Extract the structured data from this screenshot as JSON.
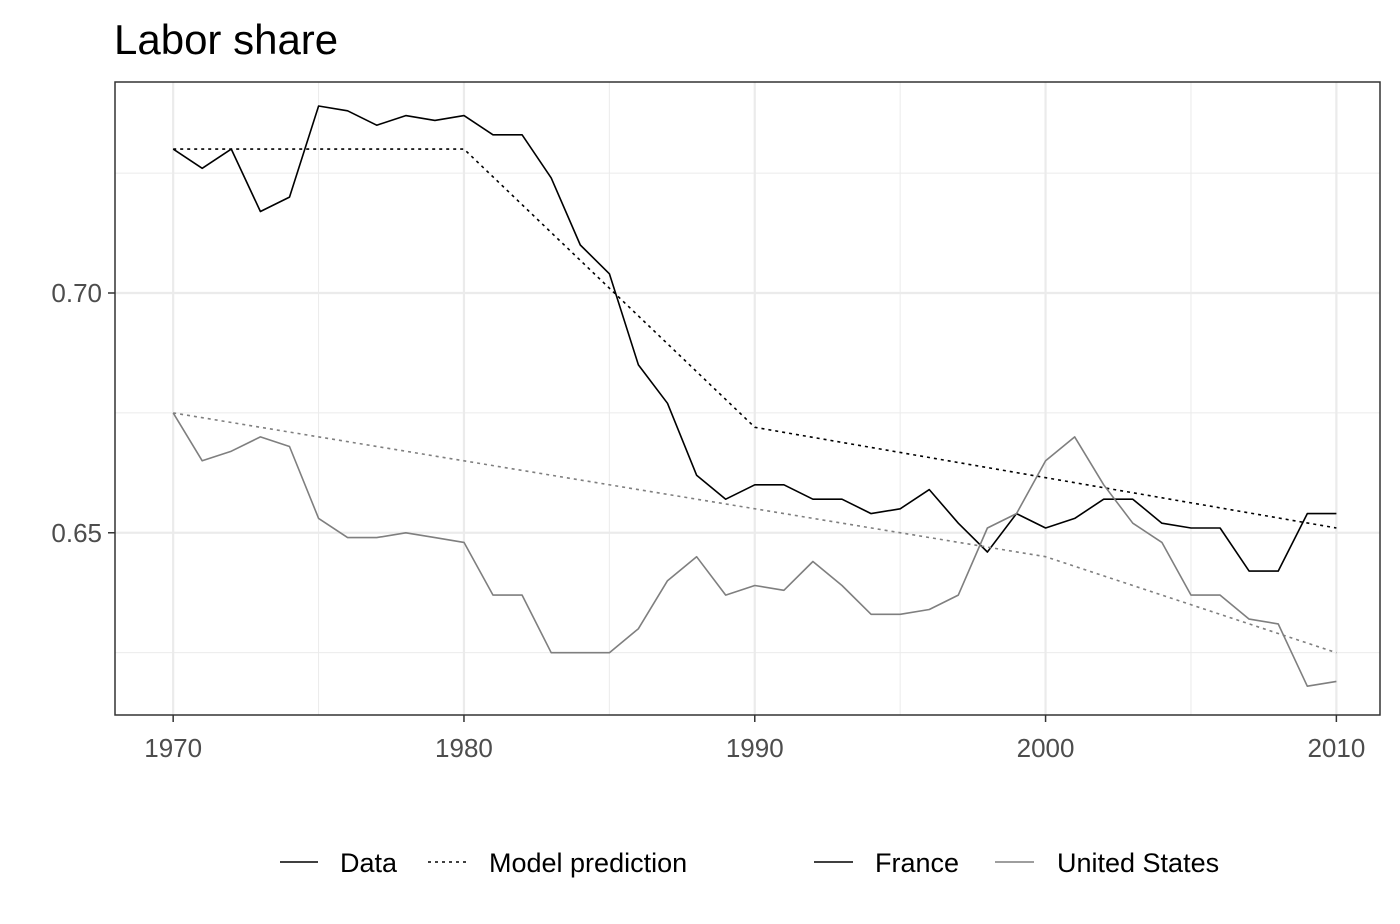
{
  "chart_data": {
    "type": "line",
    "title": "Labor share",
    "xlabel": "",
    "ylabel": "",
    "xlim": [
      1968,
      2011.5
    ],
    "ylim": [
      0.612,
      0.744
    ],
    "x_ticks": [
      "1970",
      "1980",
      "1990",
      "2000",
      "2010"
    ],
    "x_tick_values": [
      1970,
      1980,
      1990,
      2000,
      2010
    ],
    "y_ticks": [
      "0.65",
      "0.70"
    ],
    "y_tick_values": [
      0.65,
      0.7
    ],
    "y_minor_values": [
      0.625,
      0.675,
      0.725
    ],
    "x_minor_values": [
      1975,
      1985,
      1995,
      2005
    ],
    "grid": true,
    "legend_position": "bottom",
    "legend": {
      "linetype": [
        {
          "label": "Data",
          "dash": "solid"
        },
        {
          "label": "Model prediction",
          "dash": "dotted"
        }
      ],
      "country": [
        {
          "label": "France",
          "color": "#000000"
        },
        {
          "label": "United States",
          "color": "#7f7f7f"
        }
      ]
    },
    "colors": {
      "France": "#000000",
      "United States": "#7f7f7f"
    },
    "series": [
      {
        "name": "France",
        "kind": "Data",
        "color": "#000000",
        "dash": "solid",
        "x": [
          1970,
          1971,
          1972,
          1973,
          1974,
          1975,
          1976,
          1977,
          1978,
          1979,
          1980,
          1981,
          1982,
          1983,
          1984,
          1985,
          1986,
          1987,
          1988,
          1989,
          1990,
          1991,
          1992,
          1993,
          1994,
          1995,
          1996,
          1997,
          1998,
          1999,
          2000,
          2001,
          2002,
          2003,
          2004,
          2005,
          2006,
          2007,
          2008,
          2009,
          2010
        ],
        "y": [
          0.73,
          0.726,
          0.73,
          0.717,
          0.72,
          0.739,
          0.738,
          0.735,
          0.737,
          0.736,
          0.737,
          0.733,
          0.733,
          0.724,
          0.71,
          0.704,
          0.685,
          0.677,
          0.662,
          0.657,
          0.66,
          0.66,
          0.657,
          0.657,
          0.654,
          0.655,
          0.659,
          0.652,
          0.646,
          0.654,
          0.651,
          0.653,
          0.657,
          0.657,
          0.652,
          0.651,
          0.651,
          0.642,
          0.642,
          0.654,
          0.654
        ]
      },
      {
        "name": "France",
        "kind": "Model prediction",
        "color": "#000000",
        "dash": "dotted",
        "x": [
          1970,
          1980,
          1990,
          2010
        ],
        "y": [
          0.73,
          0.73,
          0.672,
          0.651
        ]
      },
      {
        "name": "United States",
        "kind": "Data",
        "color": "#7f7f7f",
        "dash": "solid",
        "x": [
          1970,
          1971,
          1972,
          1973,
          1974,
          1975,
          1976,
          1977,
          1978,
          1979,
          1980,
          1981,
          1982,
          1983,
          1984,
          1985,
          1986,
          1987,
          1988,
          1989,
          1990,
          1991,
          1992,
          1993,
          1994,
          1995,
          1996,
          1997,
          1998,
          1999,
          2000,
          2001,
          2002,
          2003,
          2004,
          2005,
          2006,
          2007,
          2008,
          2009,
          2010
        ],
        "y": [
          0.675,
          0.665,
          0.667,
          0.67,
          0.668,
          0.653,
          0.649,
          0.649,
          0.65,
          0.649,
          0.648,
          0.637,
          0.637,
          0.625,
          0.625,
          0.625,
          0.63,
          0.64,
          0.645,
          0.637,
          0.639,
          0.638,
          0.644,
          0.639,
          0.633,
          0.633,
          0.634,
          0.637,
          0.651,
          0.654,
          0.665,
          0.67,
          0.66,
          0.652,
          0.648,
          0.637,
          0.637,
          0.632,
          0.631,
          0.618,
          0.619
        ]
      },
      {
        "name": "United States",
        "kind": "Model prediction",
        "color": "#7f7f7f",
        "dash": "dotted",
        "x": [
          1970,
          2000,
          2010
        ],
        "y": [
          0.675,
          0.645,
          0.625
        ]
      }
    ]
  }
}
